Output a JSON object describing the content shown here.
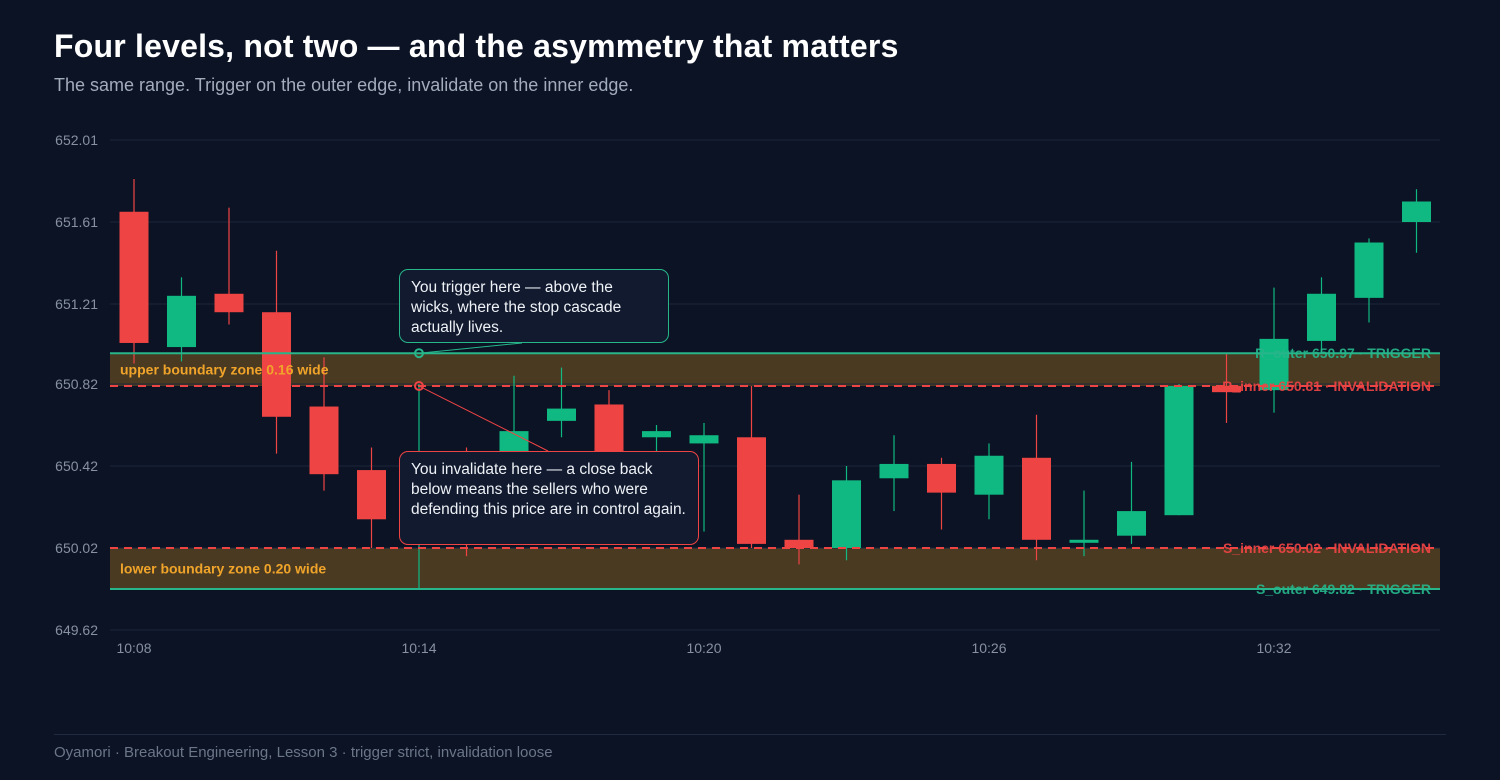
{
  "header": {
    "title": "Four levels, not two — and the asymmetry that matters",
    "subtitle": "The same range. Trigger on the outer edge, invalidate on the inner edge."
  },
  "footer": {
    "text": "Oyamori · Breakout Engineering, Lesson 3 · trigger strict, invalidation loose"
  },
  "callouts": {
    "trigger": "You trigger here — above the wicks, where the stop cascade actually lives.",
    "invalidation": "You invalidate here — a close back below means the sellers who were defending this price are in control again."
  },
  "colors": {
    "background": "#0b1324",
    "up": "#10b981",
    "down": "#ef4444",
    "zone": "#4a3a22",
    "zone_label": "#f0a42a",
    "grid": "#1c273b",
    "tick": "#8791a3"
  },
  "chart_data": {
    "type": "candlestick",
    "ylim": [
      649.62,
      652.01
    ],
    "y_ticks": [
      "649.62",
      "650.02",
      "650.42",
      "650.82",
      "651.21",
      "651.61",
      "652.01"
    ],
    "x_ticks": [
      {
        "index": 0,
        "label": "10:08"
      },
      {
        "index": 6,
        "label": "10:14"
      },
      {
        "index": 12,
        "label": "10:20"
      },
      {
        "index": 18,
        "label": "10:26"
      },
      {
        "index": 24,
        "label": "10:32"
      }
    ],
    "candles": [
      {
        "o": 651.66,
        "h": 651.82,
        "l": 650.92,
        "c": 651.02
      },
      {
        "o": 651.0,
        "h": 651.34,
        "l": 650.93,
        "c": 651.25
      },
      {
        "o": 651.26,
        "h": 651.68,
        "l": 651.11,
        "c": 651.17
      },
      {
        "o": 651.17,
        "h": 651.47,
        "l": 650.48,
        "c": 650.66
      },
      {
        "o": 650.71,
        "h": 650.95,
        "l": 650.3,
        "c": 650.38
      },
      {
        "o": 650.4,
        "h": 650.51,
        "l": 650.02,
        "c": 650.16
      },
      {
        "o": 650.16,
        "h": 650.82,
        "l": 649.82,
        "c": 650.35
      },
      {
        "o": 650.3,
        "h": 650.51,
        "l": 649.98,
        "c": 650.26
      },
      {
        "o": 650.42,
        "h": 650.86,
        "l": 650.31,
        "c": 650.59
      },
      {
        "o": 650.64,
        "h": 650.9,
        "l": 650.56,
        "c": 650.7
      },
      {
        "o": 650.72,
        "h": 650.79,
        "l": 650.36,
        "c": 650.36
      },
      {
        "o": 650.56,
        "h": 650.62,
        "l": 650.39,
        "c": 650.59
      },
      {
        "o": 650.53,
        "h": 650.63,
        "l": 650.1,
        "c": 650.57
      },
      {
        "o": 650.56,
        "h": 650.81,
        "l": 650.02,
        "c": 650.04
      },
      {
        "o": 650.06,
        "h": 650.28,
        "l": 649.94,
        "c": 650.02
      },
      {
        "o": 650.02,
        "h": 650.42,
        "l": 649.96,
        "c": 650.35
      },
      {
        "o": 650.36,
        "h": 650.57,
        "l": 650.2,
        "c": 650.43
      },
      {
        "o": 650.43,
        "h": 650.46,
        "l": 650.11,
        "c": 650.29
      },
      {
        "o": 650.28,
        "h": 650.53,
        "l": 650.16,
        "c": 650.47
      },
      {
        "o": 650.46,
        "h": 650.67,
        "l": 649.96,
        "c": 650.06
      },
      {
        "o": 650.05,
        "h": 650.3,
        "l": 649.98,
        "c": 650.06
      },
      {
        "o": 650.08,
        "h": 650.44,
        "l": 650.04,
        "c": 650.2
      },
      {
        "o": 650.18,
        "h": 650.82,
        "l": 650.18,
        "c": 650.81
      },
      {
        "o": 650.81,
        "h": 650.97,
        "l": 650.63,
        "c": 650.78
      },
      {
        "o": 650.79,
        "h": 651.29,
        "l": 650.68,
        "c": 651.04
      },
      {
        "o": 651.03,
        "h": 651.34,
        "l": 650.97,
        "c": 651.26
      },
      {
        "o": 651.24,
        "h": 651.53,
        "l": 651.12,
        "c": 651.51
      },
      {
        "o": 651.61,
        "h": 651.77,
        "l": 651.46,
        "c": 651.71
      }
    ],
    "levels": [
      {
        "name": "R_outer",
        "value": 650.97,
        "role": "TRIGGER",
        "style": "solid",
        "color": "#27b58a",
        "label": "R_outer  650.97 · TRIGGER"
      },
      {
        "name": "R_inner",
        "value": 650.81,
        "role": "INVALIDATION",
        "style": "dashed",
        "color": "#ef4444",
        "label": "R_inner  650.81 · INVALIDATION"
      },
      {
        "name": "S_inner",
        "value": 650.02,
        "role": "INVALIDATION",
        "style": "dashed",
        "color": "#ef4444",
        "label": "S_inner  650.02 · INVALIDATION"
      },
      {
        "name": "S_outer",
        "value": 649.82,
        "role": "TRIGGER",
        "style": "solid",
        "color": "#27b58a",
        "label": "S_outer  649.82 · TRIGGER"
      }
    ],
    "zones": [
      {
        "from": 650.81,
        "to": 650.97,
        "label": "upper boundary zone  0.16 wide"
      },
      {
        "from": 649.82,
        "to": 650.02,
        "label": "lower boundary zone  0.20 wide"
      }
    ],
    "markers": [
      {
        "index": 6,
        "value": 650.97,
        "kind": "trigger"
      },
      {
        "index": 6,
        "value": 650.81,
        "kind": "invalidation"
      }
    ]
  }
}
